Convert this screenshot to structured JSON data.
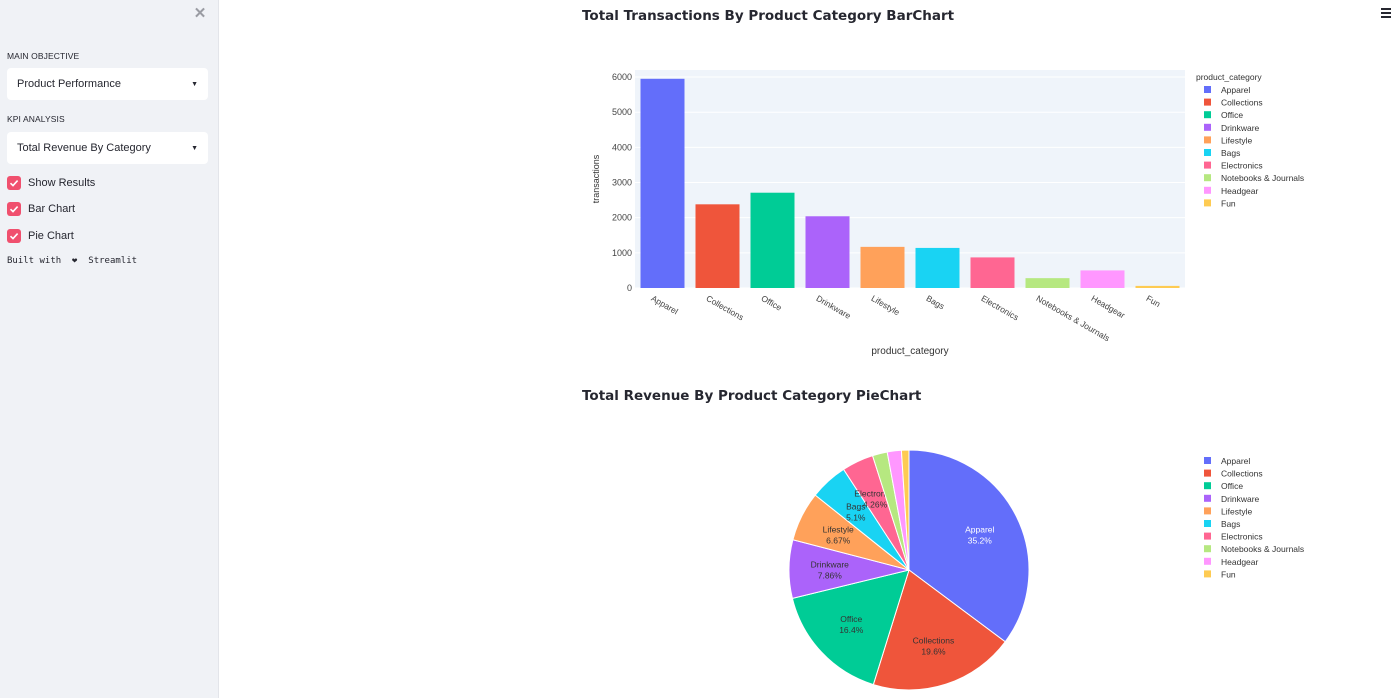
{
  "sidebar": {
    "main_objective_label": "MAIN OBJECTIVE",
    "main_objective_value": "Product Performance",
    "kpi_label": "KPI ANALYSIS",
    "kpi_value": "Total Revenue By Category",
    "checkboxes": [
      {
        "label": "Show Results",
        "checked": true
      },
      {
        "label": "Bar Chart",
        "checked": true
      },
      {
        "label": "Pie Chart",
        "checked": true
      }
    ],
    "built_with": "Built with  ❤  Streamlit",
    "accent_color": "#f0506e"
  },
  "chart_data": [
    {
      "type": "bar",
      "title": "Total Transactions By Product Category BarChart",
      "xlabel": "product_category",
      "ylabel": "transactions",
      "legend_title": "product_category",
      "legend_position": "right",
      "ylim": [
        0,
        6200
      ],
      "yticks": [
        0,
        1000,
        2000,
        3000,
        4000,
        5000,
        6000
      ],
      "grid": true,
      "categories": [
        "Apparel",
        "Collections",
        "Office",
        "Drinkware",
        "Lifestyle",
        "Bags",
        "Electronics",
        "Notebooks & Journals",
        "Headgear",
        "Fun"
      ],
      "values": [
        5950,
        2380,
        2710,
        2040,
        1170,
        1140,
        870,
        280,
        500,
        60
      ],
      "colors": [
        "#636efa",
        "#ef553b",
        "#00cc96",
        "#ab63fa",
        "#ffa15a",
        "#19d3f3",
        "#ff6692",
        "#b6e880",
        "#ff97ff",
        "#fecb52"
      ]
    },
    {
      "type": "pie",
      "title": "Total Revenue By Product Category PieChart",
      "legend_position": "right",
      "categories": [
        "Apparel",
        "Collections",
        "Office",
        "Drinkware",
        "Lifestyle",
        "Bags",
        "Electronics",
        "Notebooks & Journals",
        "Headgear",
        "Fun"
      ],
      "values": [
        35.2,
        19.6,
        16.4,
        7.86,
        6.67,
        5.1,
        4.26,
        2.0,
        1.9,
        1.01
      ],
      "labels": [
        "35.2%",
        "19.6%",
        "16.4%",
        "7.86%",
        "6.67%",
        "5.1%",
        "4.26%",
        "",
        "",
        ""
      ],
      "colors": [
        "#636efa",
        "#ef553b",
        "#00cc96",
        "#ab63fa",
        "#ffa15a",
        "#19d3f3",
        "#ff6692",
        "#b6e880",
        "#ff97ff",
        "#fecb52"
      ]
    }
  ]
}
